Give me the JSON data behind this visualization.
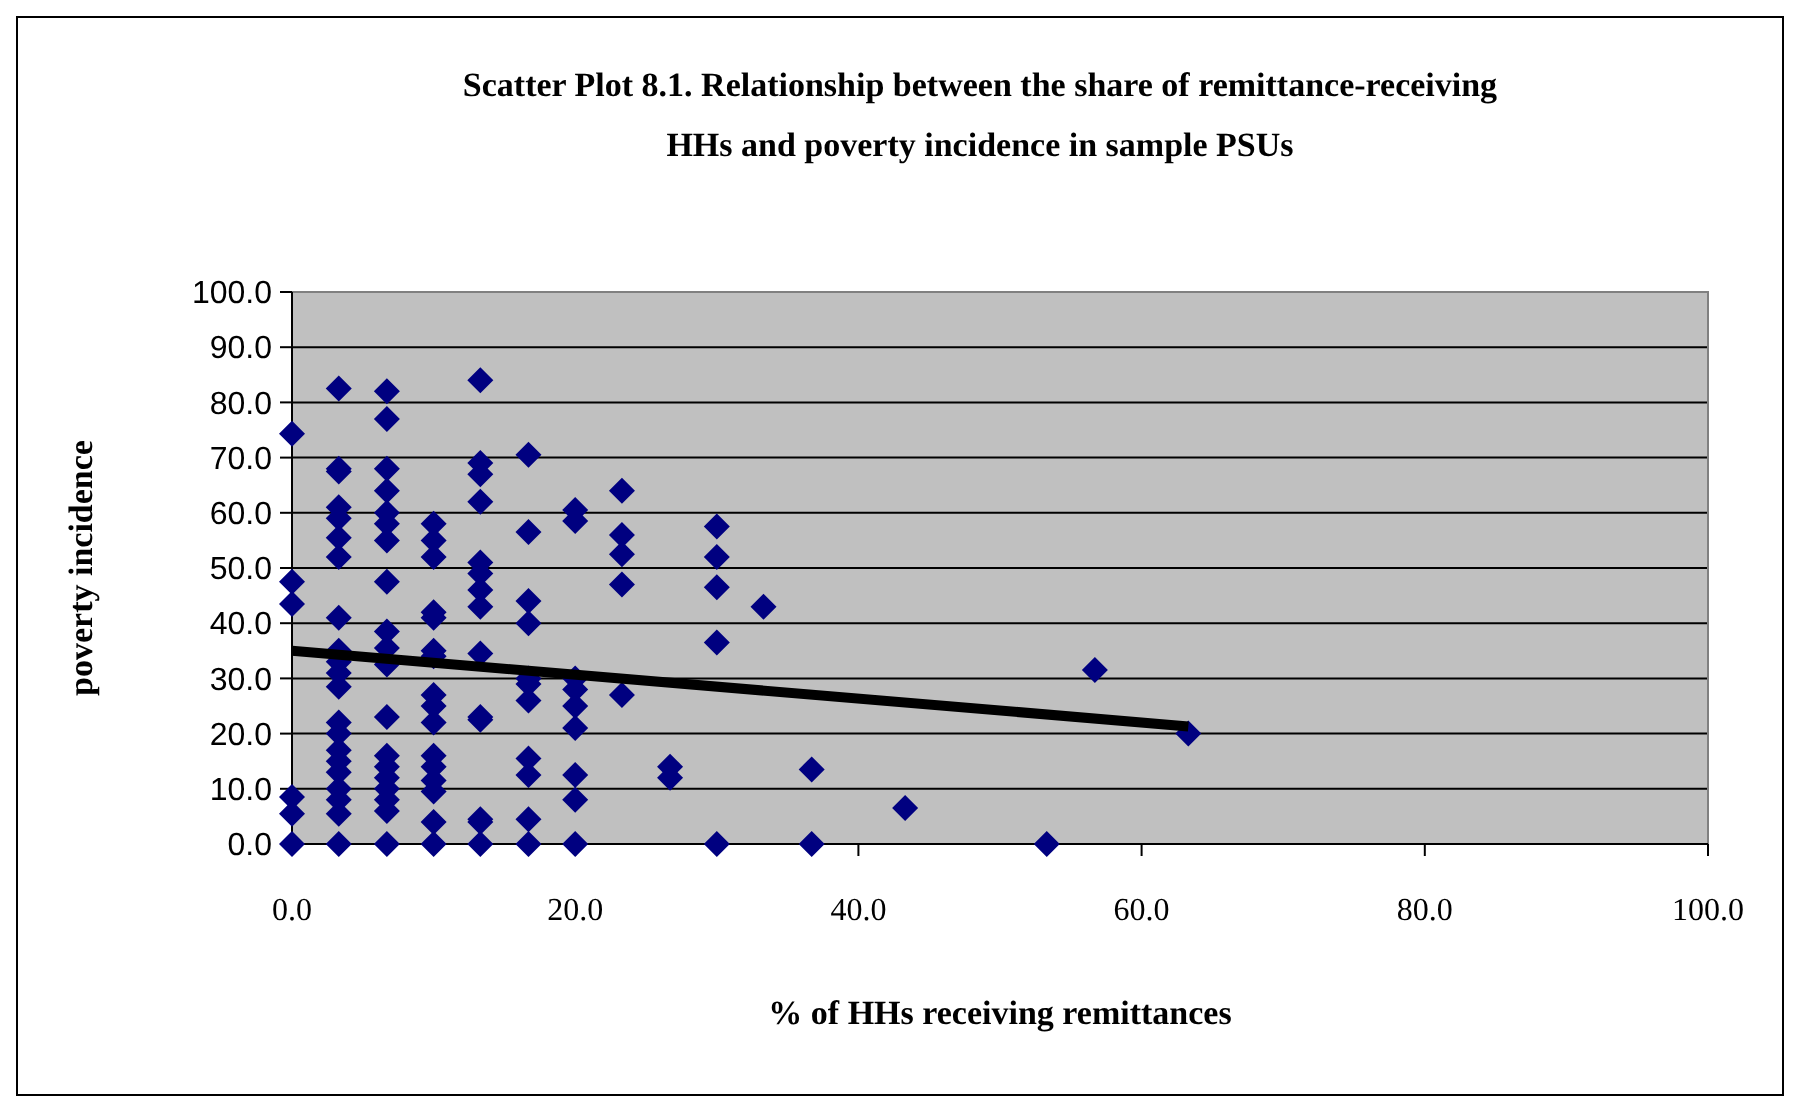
{
  "chart_data": {
    "type": "scatter",
    "title": "Scatter Plot 8.1. Relationship between the share of remittance-receiving HHs and poverty incidence in sample PSUs",
    "xlabel": "% of HHs receiving remittances",
    "ylabel": "poverty incidence",
    "xlim": [
      0,
      100
    ],
    "ylim": [
      0,
      100
    ],
    "xticks": [
      {
        "value": 0,
        "label": "0.0"
      },
      {
        "value": 20,
        "label": "20.0"
      },
      {
        "value": 40,
        "label": "40.0"
      },
      {
        "value": 60,
        "label": "60.0"
      },
      {
        "value": 80,
        "label": "80.0"
      },
      {
        "value": 100,
        "label": "100.0"
      }
    ],
    "yticks": [
      {
        "value": 0,
        "label": "0.0"
      },
      {
        "value": 10,
        "label": "10.0"
      },
      {
        "value": 20,
        "label": "20.0"
      },
      {
        "value": 30,
        "label": "30.0"
      },
      {
        "value": 40,
        "label": "40.0"
      },
      {
        "value": 50,
        "label": "50.0"
      },
      {
        "value": 60,
        "label": "60.0"
      },
      {
        "value": 70,
        "label": "70.0"
      },
      {
        "value": 80,
        "label": "80.0"
      },
      {
        "value": 90,
        "label": "90.0"
      },
      {
        "value": 100,
        "label": "100.0"
      }
    ],
    "grid": "y",
    "marker": "diamond",
    "series": [
      {
        "color": "#000080",
        "x": [
          0,
          0,
          0,
          0,
          0,
          0,
          3.3,
          3.3,
          3.3,
          3.3,
          3.3,
          3.3,
          3.3,
          3.3,
          3.3,
          3.3,
          3.3,
          3.3,
          3.3,
          3.3,
          3.3,
          3.3,
          3.3,
          3.3,
          3.3,
          3.3,
          3.3,
          6.7,
          6.7,
          6.7,
          6.7,
          6.7,
          6.7,
          6.7,
          6.7,
          6.7,
          6.7,
          6.7,
          6.7,
          6.7,
          6.7,
          6.7,
          6.7,
          6.7,
          6.7,
          6.7,
          10,
          10,
          10,
          10,
          10,
          10,
          10,
          10,
          10,
          10,
          10,
          10,
          10,
          10,
          10,
          10,
          13.3,
          13.3,
          13.3,
          13.3,
          13.3,
          13.3,
          13.3,
          13.3,
          13.3,
          13.3,
          13.3,
          13.3,
          13.3,
          13.3,
          16.7,
          16.7,
          16.7,
          16.7,
          16.7,
          16.7,
          16.7,
          16.7,
          16.7,
          16.7,
          16.7,
          20,
          20,
          20,
          20,
          20,
          20,
          20,
          20,
          20,
          23.3,
          23.3,
          23.3,
          23.3,
          23.3,
          26.7,
          26.7,
          30,
          30,
          30,
          30,
          30,
          33.3,
          36.7,
          36.7,
          43.3,
          53.3,
          56.7,
          63.3
        ],
        "values": [
          74.3,
          47.5,
          43.5,
          8.5,
          5.5,
          0,
          82.5,
          68,
          67.5,
          61,
          59,
          55.5,
          52,
          41,
          35,
          33,
          31,
          28.5,
          22,
          20,
          17,
          15,
          13,
          10,
          8,
          5.5,
          0,
          82,
          77,
          68,
          64,
          60,
          58,
          55,
          47.5,
          38.5,
          35.5,
          32.5,
          23,
          16,
          14,
          12,
          10,
          8,
          6,
          0,
          58,
          55,
          52,
          42,
          41,
          35,
          34,
          27,
          25,
          22,
          16,
          14,
          11.5,
          9.5,
          4,
          0,
          84,
          69,
          67,
          62,
          51,
          49,
          46,
          43,
          34.5,
          23,
          22.5,
          4.5,
          4,
          0,
          70.5,
          56.5,
          44,
          40,
          30,
          29,
          26,
          15.5,
          12.5,
          4.5,
          0,
          60.5,
          58.5,
          30,
          28,
          25,
          21,
          12.5,
          8,
          0,
          64,
          56,
          52.5,
          47,
          27,
          14,
          12,
          57.5,
          52,
          46.5,
          36.5,
          0,
          43,
          13.5,
          0,
          6.5,
          0,
          31.5,
          20
        ]
      },
      {
        "type": "line",
        "marker": "none",
        "color": "#000000",
        "x": [
          0,
          63.3
        ],
        "values": [
          35,
          21.3
        ]
      }
    ]
  }
}
